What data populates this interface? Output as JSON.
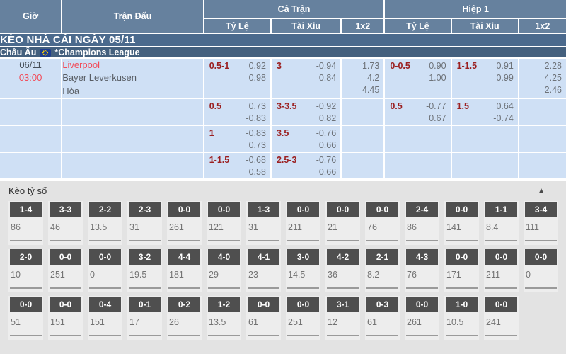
{
  "table_header": {
    "time_col": "Giờ",
    "match_col": "Trận Đấu",
    "full_time": "Cả Trận",
    "first_half": "Hiệp 1",
    "sub_cols": [
      "Tỷ Lệ",
      "Tài Xỉu",
      "1x2"
    ]
  },
  "banner": {
    "title": "KÈO NHÀ CÁI NGÀY 05/11"
  },
  "league_row": {
    "region": "Châu Âu",
    "flag_icon": "eu-flag-icon",
    "league": "*Champions League"
  },
  "match": {
    "date": "06/11",
    "kickoff": "03:00",
    "home": "Liverpool",
    "away": "Bayer Leverkusen",
    "draw": "Hòa"
  },
  "odds_rows": [
    {
      "cells": [
        {
          "hdp": "0.5-1",
          "odds": [
            "0.92",
            "0.98"
          ]
        },
        {
          "hdp": "3",
          "odds": [
            "-0.94",
            "0.84"
          ]
        },
        {
          "x12": [
            "1.73",
            "4.2",
            "4.45"
          ]
        },
        {
          "hdp": "0-0.5",
          "odds": [
            "0.90",
            "1.00"
          ]
        },
        {
          "hdp": "1-1.5",
          "odds": [
            "0.91",
            "0.99"
          ]
        },
        {
          "x12": [
            "2.28",
            "4.25",
            "2.46"
          ]
        }
      ]
    },
    {
      "cells": [
        {
          "hdp": "0.5",
          "odds": [
            "0.73",
            "-0.83"
          ]
        },
        {
          "hdp": "3-3.5",
          "odds": [
            "-0.92",
            "0.82"
          ]
        },
        {
          "x12": []
        },
        {
          "hdp": "0.5",
          "odds": [
            "-0.77",
            "0.67"
          ]
        },
        {
          "hdp": "1.5",
          "odds": [
            "0.64",
            "-0.74"
          ]
        },
        {
          "x12": []
        }
      ]
    },
    {
      "cells": [
        {
          "hdp": "1",
          "odds": [
            "-0.83",
            "0.73"
          ]
        },
        {
          "hdp": "3.5",
          "odds": [
            "-0.76",
            "0.66"
          ]
        },
        {
          "x12": []
        },
        null,
        null,
        {
          "x12": []
        }
      ]
    },
    {
      "cells": [
        {
          "hdp": "1-1.5",
          "odds": [
            "-0.68",
            "0.58"
          ]
        },
        {
          "hdp": "2.5-3",
          "odds": [
            "-0.76",
            "0.66"
          ]
        },
        {
          "x12": []
        },
        null,
        null,
        {
          "x12": []
        }
      ]
    }
  ],
  "score_section": {
    "title": "Kèo tỷ số",
    "collapse_icon": "▲",
    "rows": [
      [
        {
          "score": "1-4",
          "odds": "86"
        },
        {
          "score": "3-3",
          "odds": "46"
        },
        {
          "score": "2-2",
          "odds": "13.5"
        },
        {
          "score": "2-3",
          "odds": "31"
        },
        {
          "score": "0-0",
          "odds": "261"
        },
        {
          "score": "0-0",
          "odds": "121"
        },
        {
          "score": "1-3",
          "odds": "31"
        },
        {
          "score": "0-0",
          "odds": "211"
        },
        {
          "score": "0-0",
          "odds": "21"
        },
        {
          "score": "0-0",
          "odds": "76"
        },
        {
          "score": "2-4",
          "odds": "86"
        },
        {
          "score": "0-0",
          "odds": "141"
        },
        {
          "score": "1-1",
          "odds": "8.4"
        },
        {
          "score": "3-4",
          "odds": "111"
        }
      ],
      [
        {
          "score": "2-0",
          "odds": "10"
        },
        {
          "score": "0-0",
          "odds": "251"
        },
        {
          "score": "0-0",
          "odds": "0"
        },
        {
          "score": "3-2",
          "odds": "19.5"
        },
        {
          "score": "4-4",
          "odds": "181"
        },
        {
          "score": "4-0",
          "odds": "29"
        },
        {
          "score": "4-1",
          "odds": "23"
        },
        {
          "score": "3-0",
          "odds": "14.5"
        },
        {
          "score": "4-2",
          "odds": "36"
        },
        {
          "score": "2-1",
          "odds": "8.2"
        },
        {
          "score": "4-3",
          "odds": "76"
        },
        {
          "score": "0-0",
          "odds": "171"
        },
        {
          "score": "0-0",
          "odds": "211"
        },
        {
          "score": "0-0",
          "odds": "0"
        }
      ],
      [
        {
          "score": "0-0",
          "odds": "51"
        },
        {
          "score": "0-0",
          "odds": "151"
        },
        {
          "score": "0-4",
          "odds": "151"
        },
        {
          "score": "0-1",
          "odds": "17"
        },
        {
          "score": "0-2",
          "odds": "26"
        },
        {
          "score": "1-2",
          "odds": "13.5"
        },
        {
          "score": "0-0",
          "odds": "61"
        },
        {
          "score": "0-0",
          "odds": "251"
        },
        {
          "score": "3-1",
          "odds": "12"
        },
        {
          "score": "0-3",
          "odds": "61"
        },
        {
          "score": "0-0",
          "odds": "261"
        },
        {
          "score": "1-0",
          "odds": "10.5"
        },
        {
          "score": "0-0",
          "odds": "241"
        }
      ]
    ]
  },
  "colors": {
    "header_blue": "#66819e",
    "banner_blue": "#4b6a8d",
    "league_blue": "#44607e",
    "row_blue": "#cfe0f5",
    "accent_red": "#f24b58",
    "handicap_red": "#9b2021",
    "chip_gray": "#4f4f4f"
  }
}
